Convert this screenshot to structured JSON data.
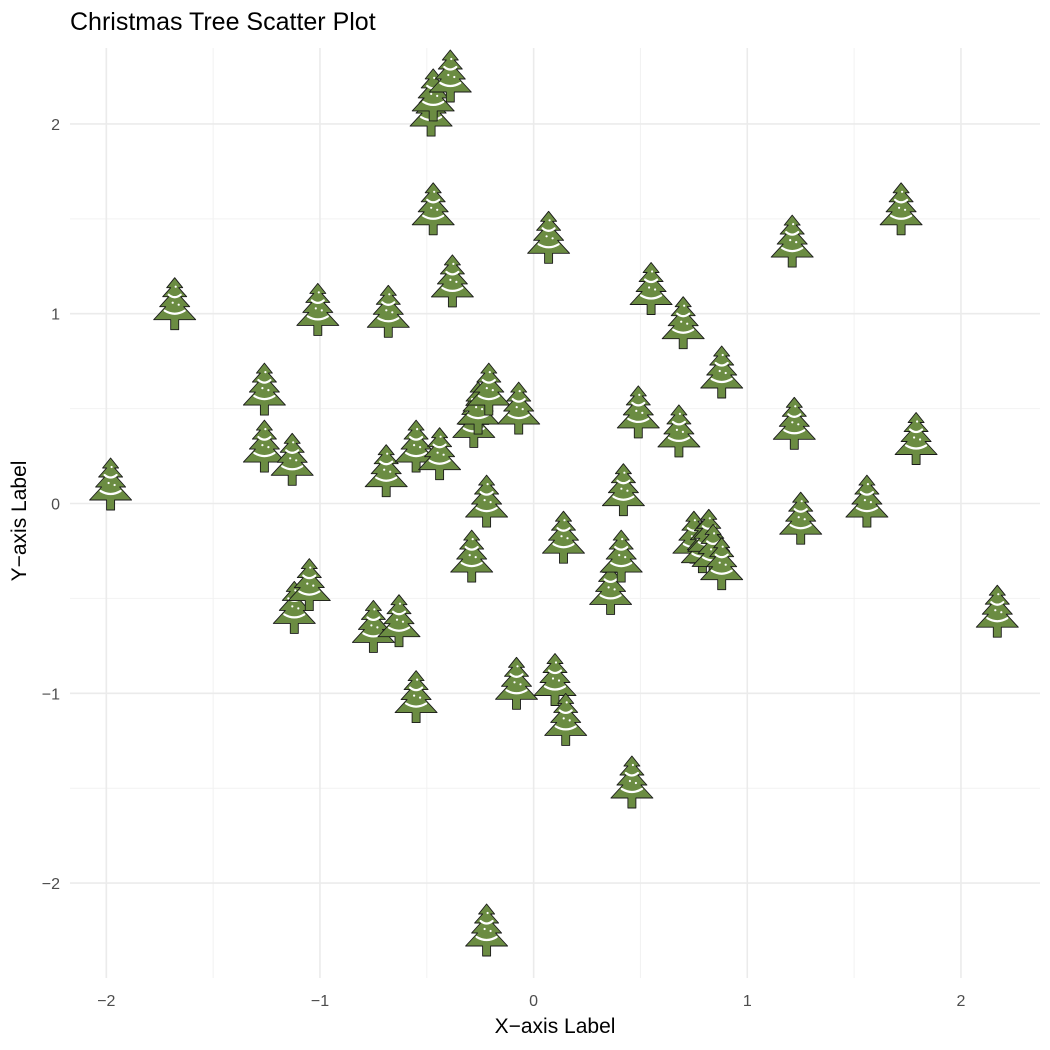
{
  "chart_data": {
    "type": "scatter",
    "title": "Christmas Tree Scatter Plot",
    "xlabel": "X−axis Label",
    "ylabel": "Y−axis Label",
    "xlim": [
      -2.17,
      2.37
    ],
    "ylim": [
      -2.5,
      2.4
    ],
    "x_major_ticks": [
      -2,
      -1,
      0,
      1,
      2
    ],
    "x_tick_labels": [
      "−2",
      "−1",
      "0",
      "1",
      "2"
    ],
    "y_major_ticks": [
      -2,
      -1,
      0,
      1,
      2
    ],
    "y_tick_labels": [
      "−2",
      "−1",
      "0",
      "1",
      "2"
    ],
    "x_minor_ticks": [
      -1.5,
      -0.5,
      0.5,
      1.5
    ],
    "y_minor_ticks": [
      -1.5,
      -0.5,
      0.5,
      1.5
    ],
    "grid": true,
    "legend": "none",
    "marker": "christmas-tree",
    "marker_color": "#6b8c42",
    "points": [
      {
        "x": -1.98,
        "y": 0.05
      },
      {
        "x": -1.68,
        "y": 1.0
      },
      {
        "x": -1.26,
        "y": 0.55
      },
      {
        "x": -1.26,
        "y": 0.25
      },
      {
        "x": -1.13,
        "y": 0.18
      },
      {
        "x": -1.12,
        "y": -0.6
      },
      {
        "x": -1.05,
        "y": -0.48
      },
      {
        "x": -1.01,
        "y": 0.97
      },
      {
        "x": -0.75,
        "y": -0.7
      },
      {
        "x": -0.69,
        "y": 0.12
      },
      {
        "x": -0.68,
        "y": 0.96
      },
      {
        "x": -0.63,
        "y": -0.67
      },
      {
        "x": -0.55,
        "y": -1.07
      },
      {
        "x": -0.55,
        "y": 0.25
      },
      {
        "x": -0.48,
        "y": 2.02
      },
      {
        "x": -0.47,
        "y": 2.1
      },
      {
        "x": -0.47,
        "y": 1.5
      },
      {
        "x": -0.44,
        "y": 0.21
      },
      {
        "x": -0.39,
        "y": 2.2
      },
      {
        "x": -0.38,
        "y": 1.12
      },
      {
        "x": -0.29,
        "y": -0.33
      },
      {
        "x": -0.28,
        "y": 0.38
      },
      {
        "x": -0.26,
        "y": 0.45
      },
      {
        "x": -0.21,
        "y": 0.55
      },
      {
        "x": -0.22,
        "y": -2.3
      },
      {
        "x": -0.22,
        "y": -0.04
      },
      {
        "x": -0.07,
        "y": 0.45
      },
      {
        "x": -0.08,
        "y": -1.0
      },
      {
        "x": 0.07,
        "y": 1.35
      },
      {
        "x": 0.1,
        "y": -0.98
      },
      {
        "x": 0.15,
        "y": -1.19
      },
      {
        "x": 0.14,
        "y": -0.23
      },
      {
        "x": 0.36,
        "y": -0.5
      },
      {
        "x": 0.41,
        "y": -0.33
      },
      {
        "x": 0.42,
        "y": 0.02
      },
      {
        "x": 0.46,
        "y": -1.52
      },
      {
        "x": 0.49,
        "y": 0.43
      },
      {
        "x": 0.55,
        "y": 1.08
      },
      {
        "x": 0.68,
        "y": 0.33
      },
      {
        "x": 0.7,
        "y": 0.9
      },
      {
        "x": 0.75,
        "y": -0.23
      },
      {
        "x": 0.79,
        "y": -0.28
      },
      {
        "x": 0.82,
        "y": -0.22
      },
      {
        "x": 0.84,
        "y": -0.3
      },
      {
        "x": 0.88,
        "y": -0.37
      },
      {
        "x": 0.88,
        "y": 0.64
      },
      {
        "x": 1.21,
        "y": 1.33
      },
      {
        "x": 1.22,
        "y": 0.37
      },
      {
        "x": 1.25,
        "y": -0.13
      },
      {
        "x": 1.56,
        "y": -0.04
      },
      {
        "x": 1.72,
        "y": 1.5
      },
      {
        "x": 1.79,
        "y": 0.29
      },
      {
        "x": 2.17,
        "y": -0.62
      }
    ]
  }
}
